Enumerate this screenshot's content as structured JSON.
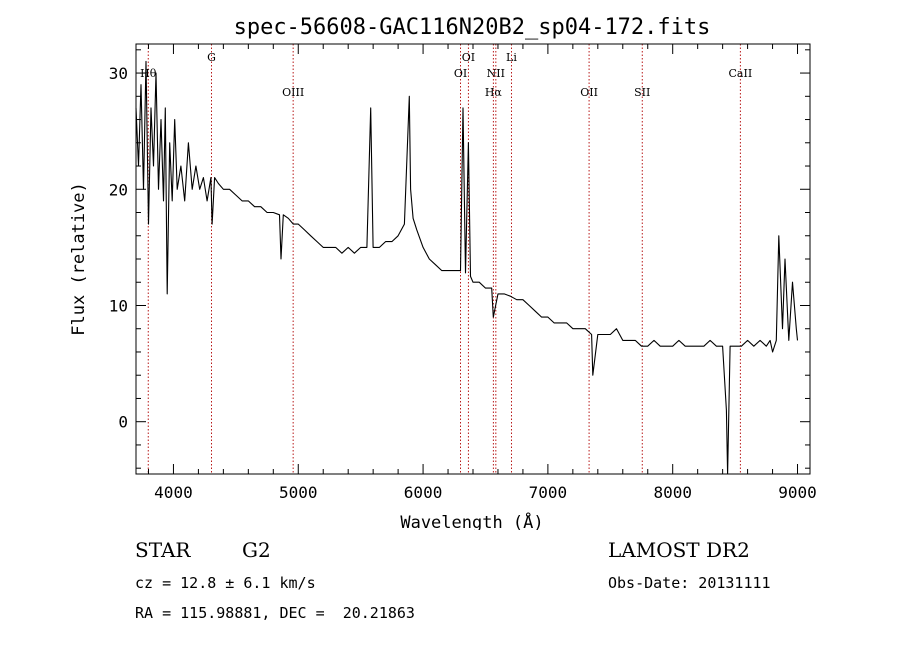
{
  "chart_data": {
    "type": "line",
    "title": "spec-56608-GAC116N20B2_sp04-172.fits",
    "xlabel": "Wavelength (Å)",
    "ylabel": "Flux (relative)",
    "xlim": [
      3700,
      9100
    ],
    "ylim": [
      -4.5,
      32.5
    ],
    "x_ticks": [
      4000,
      5000,
      6000,
      7000,
      8000,
      9000
    ],
    "y_ticks": [
      0,
      10,
      20,
      30
    ],
    "grid": false,
    "series": [
      {
        "color": "#000000",
        "x": [
          3700,
          3720,
          3740,
          3760,
          3780,
          3800,
          3820,
          3840,
          3860,
          3880,
          3900,
          3920,
          3935,
          3950,
          3970,
          3990,
          4010,
          4030,
          4060,
          4090,
          4120,
          4150,
          4180,
          4210,
          4240,
          4270,
          4300,
          4310,
          4330,
          4360,
          4400,
          4450,
          4500,
          4550,
          4600,
          4650,
          4700,
          4750,
          4800,
          4850,
          4862,
          4880,
          4920,
          4960,
          5000,
          5050,
          5100,
          5150,
          5200,
          5250,
          5300,
          5350,
          5400,
          5450,
          5500,
          5550,
          5580,
          5600,
          5650,
          5700,
          5750,
          5800,
          5850,
          5890,
          5900,
          5920,
          5950,
          6000,
          6050,
          6100,
          6150,
          6200,
          6250,
          6300,
          6320,
          6340,
          6363,
          6380,
          6400,
          6450,
          6500,
          6550,
          6563,
          6600,
          6650,
          6700,
          6750,
          6800,
          6850,
          6900,
          6950,
          7000,
          7050,
          7100,
          7150,
          7200,
          7250,
          7300,
          7350,
          7360,
          7400,
          7450,
          7500,
          7550,
          7600,
          7650,
          7700,
          7750,
          7800,
          7850,
          7900,
          7950,
          8000,
          8050,
          8100,
          8150,
          8200,
          8250,
          8300,
          8350,
          8400,
          8430,
          8440,
          8460,
          8500,
          8550,
          8600,
          8650,
          8700,
          8750,
          8780,
          8800,
          8830,
          8850,
          8880,
          8900,
          8930,
          8960,
          8990,
          9000
        ],
        "y": [
          27,
          22,
          29,
          20,
          31,
          17,
          27,
          22,
          30,
          20,
          26,
          19,
          27,
          11,
          24,
          19,
          26,
          20,
          22,
          19,
          24,
          20,
          22,
          20,
          21,
          19,
          21,
          17,
          21,
          20.5,
          20,
          20,
          19.5,
          19,
          19,
          18.5,
          18.5,
          18,
          18,
          17.8,
          14,
          17.8,
          17.5,
          17,
          17,
          16.5,
          16,
          15.5,
          15,
          15,
          15,
          14.5,
          15,
          14.5,
          15,
          15,
          27,
          15,
          15,
          15.5,
          15.5,
          16,
          17,
          28,
          20,
          17.5,
          16.5,
          15,
          14,
          13.5,
          13,
          13,
          13,
          13,
          27,
          12.8,
          24,
          12.5,
          12,
          12,
          11.5,
          11.5,
          9,
          11,
          11,
          10.8,
          10.5,
          10.5,
          10,
          9.5,
          9,
          9,
          8.5,
          8.5,
          8.5,
          8,
          8,
          8,
          7.5,
          4,
          7.5,
          7.5,
          7.5,
          8,
          7,
          7,
          7,
          6.5,
          6.5,
          7,
          6.5,
          6.5,
          6.5,
          7,
          6.5,
          6.5,
          6.5,
          6.5,
          7,
          6.5,
          6.5,
          1,
          -5,
          6.5,
          6.5,
          6.5,
          7,
          6.5,
          7,
          6.5,
          7,
          6,
          7,
          16,
          8,
          14,
          7,
          12,
          8,
          7
        ]
      }
    ],
    "annotations": [
      {
        "label": "Hθ",
        "x": 3798,
        "row": 1
      },
      {
        "label": "G",
        "x": 4305,
        "row": 0
      },
      {
        "label": "OIII",
        "x": 4959,
        "row": 2
      },
      {
        "label": "OI",
        "x": 6300,
        "row": 1
      },
      {
        "label": "OI",
        "x": 6363,
        "row": 0
      },
      {
        "label": "NII",
        "x": 6583,
        "row": 1
      },
      {
        "label": "Hα",
        "x": 6563,
        "row": 2
      },
      {
        "label": "Li",
        "x": 6708,
        "row": 0
      },
      {
        "label": "OII",
        "x": 7330,
        "row": 2
      },
      {
        "label": "SII",
        "x": 7756,
        "row": 2
      },
      {
        "label": "CaII",
        "x": 8542,
        "row": 1
      }
    ]
  },
  "info": {
    "class": "STAR",
    "subclass": "G2",
    "survey": "LAMOST DR2",
    "cz": "cz = 12.8 ± 6.1 km/s",
    "obs_date": "Obs-Date: 20131111",
    "radec": "RA = 115.98881, DEC =  20.21863"
  }
}
